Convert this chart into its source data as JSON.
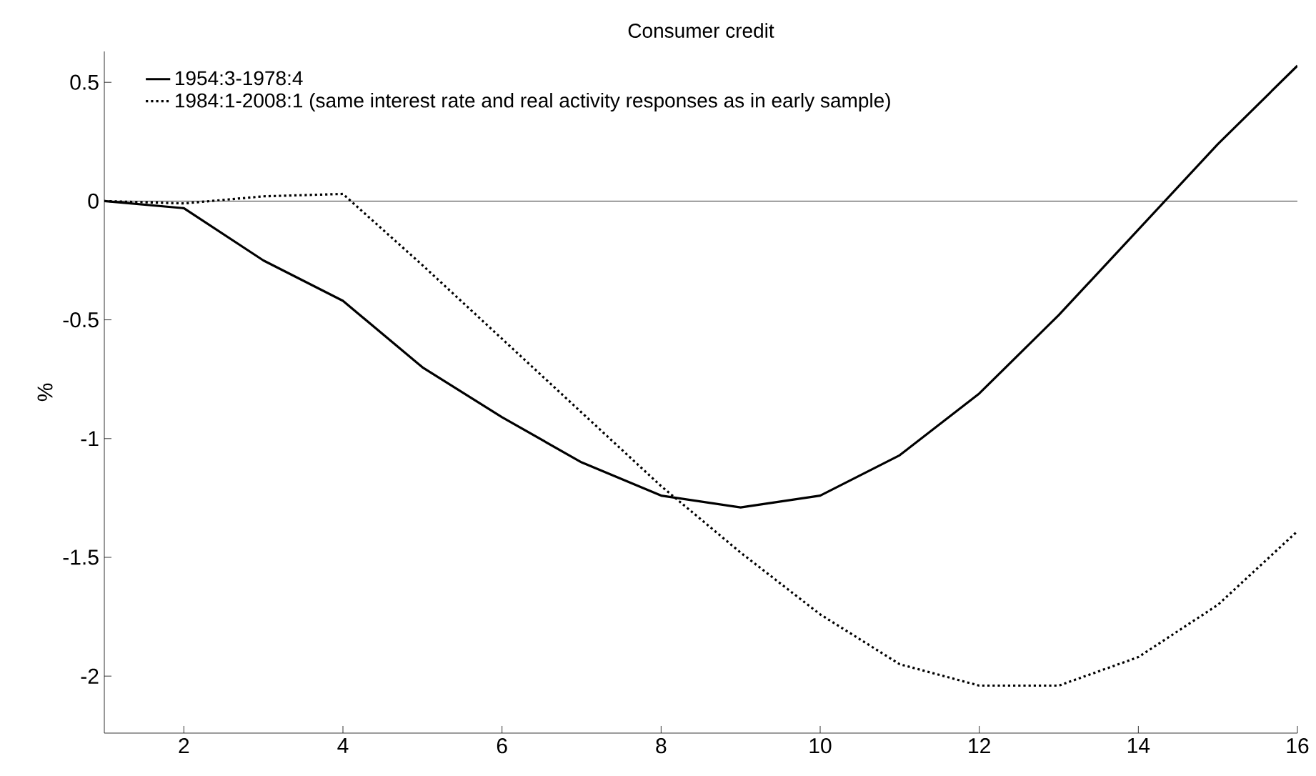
{
  "chart_data": {
    "type": "line",
    "title": "Consumer credit",
    "ylabel": "%",
    "x": [
      1,
      2,
      3,
      4,
      5,
      6,
      7,
      8,
      9,
      10,
      11,
      12,
      13,
      14,
      15,
      16
    ],
    "series": [
      {
        "name": "1954:3-1978:4",
        "color": "#000000",
        "line_style": "solid",
        "values": [
          0,
          -0.03,
          -0.25,
          -0.42,
          -0.7,
          -0.91,
          -1.1,
          -1.24,
          -1.29,
          -1.24,
          -1.07,
          -0.81,
          -0.48,
          -0.12,
          0.24,
          0.57
        ]
      },
      {
        "name": "1984:1-2008:1 (same interest rate and real activity responses as in early sample)",
        "color": "#000000",
        "line_style": "dotted",
        "values": [
          0,
          -0.01,
          0.02,
          0.03,
          -0.27,
          -0.58,
          -0.89,
          -1.2,
          -1.48,
          -1.74,
          -1.95,
          -2.04,
          -2.04,
          -1.92,
          -1.7,
          -1.39
        ]
      }
    ],
    "xlim": [
      1,
      16
    ],
    "ylim": [
      -2.24,
      0.63
    ],
    "xticks": [
      2,
      4,
      6,
      8,
      10,
      12,
      14,
      16
    ],
    "yticks": [
      -2,
      -1.5,
      -1,
      -0.5,
      0,
      0.5
    ],
    "ref_lines": [
      {
        "axis": "y",
        "value": 0,
        "color": "#000000"
      }
    ],
    "legend": "top left",
    "grid": false,
    "marker": "none"
  }
}
